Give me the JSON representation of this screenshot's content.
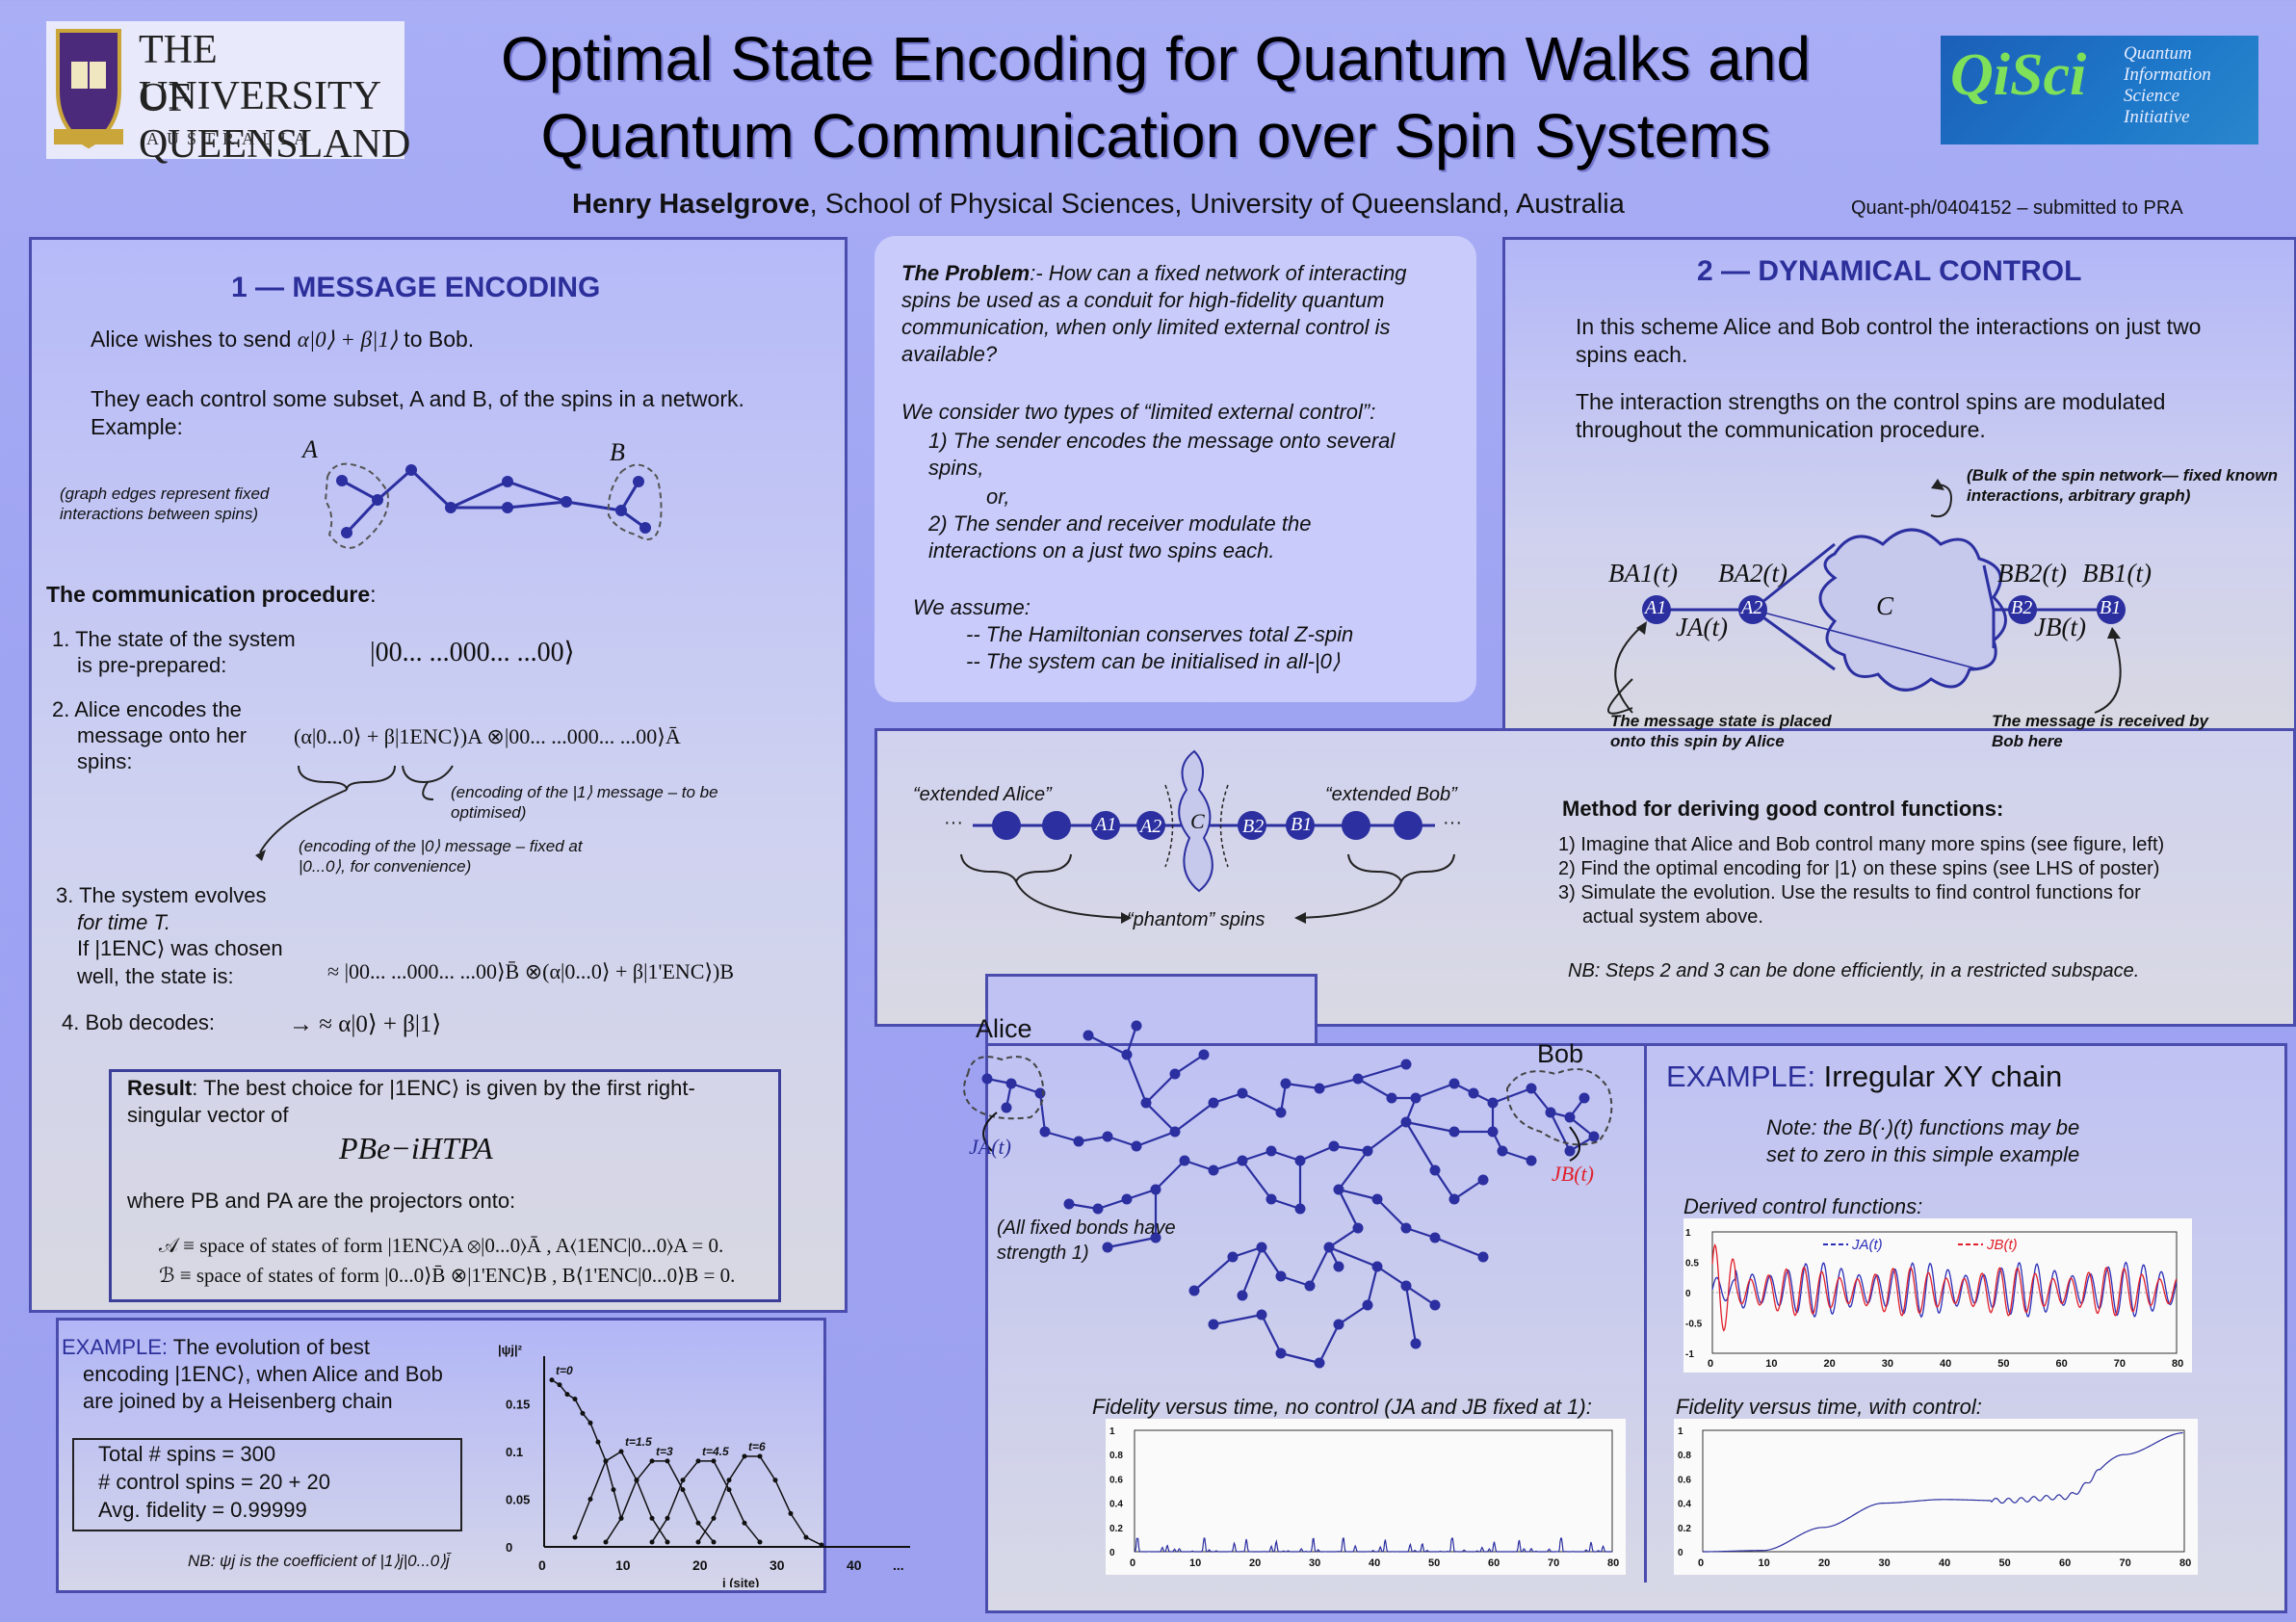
{
  "header": {
    "title_line1": "Optimal State Encoding for Quantum Walks and",
    "title_line2": "Quantum Communication over Spin Systems",
    "author": "Henry Haselgrove",
    "affiliation": ", School of Physical Sciences, University of Queensland, Australia",
    "arxiv": "Quant-ph/0404152 – submitted to PRA",
    "uq_logo": {
      "line1": "THE UNIVERSITY",
      "line2": "OF QUEENSLAND",
      "line3": "AUSTRALIA"
    },
    "qisci_logo": {
      "brand": "QiSci",
      "l1": "Quantum",
      "l2": "Information",
      "l3": "Science",
      "l4": "Initiative"
    }
  },
  "section1": {
    "heading": "1 — MESSAGE ENCODING",
    "p1_a": "Alice wishes to send ",
    "p1_math": "α|0⟩ + β|1⟩",
    "p1_b": " to Bob.",
    "p2": "They each control some subset, A and B, of the spins in a network. Example:",
    "graph_note": "(graph edges represent fixed interactions between spins)",
    "label_A": "A",
    "label_B": "B",
    "proc_heading": "The communication procedure",
    "proc_colon": ":",
    "step1_a": "1. The state of the system",
    "step1_b": "is pre-prepared:",
    "step1_math": "|00...  ...000...   ...00⟩",
    "step2_a": "2. Alice encodes the",
    "step2_b": "message onto her",
    "step2_c": "spins:",
    "step2_math": "(α|0...0⟩ + β|1ENC⟩)A ⊗|00...  ...000...  ...00⟩Ā",
    "enc1_note": "(encoding of the |1⟩ message – to be optimised)",
    "enc0_note": "(encoding of the |0⟩ message – fixed at |0...0⟩, for convenience)",
    "step3_a": "3. The system evolves",
    "step3_b": "for time T.",
    "step3_c": "If  |1ENC⟩  was chosen",
    "step3_d": "well, the state is:",
    "step3_math": "≈ |00...  ...000...  ...00⟩B̄ ⊗(α|0...0⟩ + β|1'ENC⟩)B",
    "step4": "4. Bob decodes:",
    "step4_math": "→   ≈  α|0⟩ + β|1⟩",
    "result_label": "Result",
    "result_text": ": The best choice for |1ENC⟩ is given by the first right-singular vector of",
    "result_math": "PBe−iHTPA",
    "where_text": "where PB and PA  are the projectors onto:",
    "proj1": "𝒜 ≡ space of states of form  |1ENC⟩A ⊗|0...0⟩Ā ,     A⟨1ENC|0...0⟩A = 0.",
    "proj2": "ℬ ≡ space of states of form  |0...0⟩B̄ ⊗|1'ENC⟩B ,     B⟨1'ENC|0...0⟩B = 0."
  },
  "example1": {
    "label": "EXAMPLE:",
    "text_a": " The evolution of best",
    "text_b": "encoding |1ENC⟩, when Alice and Bob",
    "text_c": "are joined by a Heisenberg chain",
    "stat1": "Total # spins  = 300",
    "stat2": "# control spins = 20 + 20",
    "stat3": "Avg. fidelity = 0.99999",
    "nb": "NB: ψj is the coefficient of |1⟩j|0...0⟩j̄"
  },
  "problem": {
    "lead": "The Problem",
    "text": ":- How can a fixed network of interacting spins be used as a conduit for high-fidelity quantum communication, when only limited external control is available?",
    "consider": "We consider two types of “limited external control”:",
    "opt1": "1) The sender encodes the message onto several spins,",
    "or": "or,",
    "opt2": "2) The sender and receiver modulate the interactions on a just two spins each.",
    "assume": "We assume:",
    "a1": "-- The Hamiltonian conserves total Z-spin",
    "a2": "-- The system can be initialised in all-|0⟩"
  },
  "section2": {
    "heading": "2 — DYNAMICAL CONTROL",
    "p1": "In this scheme Alice and Bob control the interactions on just two spins each.",
    "p2": "The interaction strengths on the control spins are modulated throughout the communication procedure.",
    "bulk_note": "(Bulk of the spin network— fixed known interactions, arbitrary graph)",
    "placed_note": "The message state is placed onto this spin by Alice",
    "received_note": "The message is received by Bob here",
    "labels": {
      "BA1": "BA1(t)",
      "BA2": "BA2(t)",
      "BB2": "BB2(t)",
      "BB1": "BB1(t)",
      "JA": "JA(t)",
      "JB": "JB(t)",
      "C": "C",
      "A1": "A1",
      "A2": "A2",
      "B1": "B1",
      "B2": "B2"
    }
  },
  "method": {
    "ext_alice": "“extended Alice”",
    "ext_bob": "“extended Bob”",
    "phantom": "“phantom” spins",
    "heading": "Method for deriving good control functions:",
    "m1": "1) Imagine that Alice and Bob control many more spins (see figure, left)",
    "m2": "2) Find the optimal encoding for |1⟩ on these spins (see LHS of poster)",
    "m3a": "3) Simulate the evolution. Use the results to find control functions for",
    "m3b": "actual system above.",
    "nb": "NB: Steps 2 and 3 can be done efficiently, in a restricted subspace."
  },
  "example2": {
    "alice": "Alice",
    "bob": "Bob",
    "ja": "JA(t)",
    "jb": "JB(t)",
    "bonds_note": "(All fixed bonds have strength 1)",
    "label": "EXAMPLE:",
    "title": " Irregular XY chain",
    "note_a": "Note: the B(·)(t) functions may be",
    "note_b": "set to zero in this simple example",
    "derived": "Derived control functions:",
    "fid_no_control": "Fidelity versus time, no control (JA and JB fixed at 1):",
    "fid_control": "Fidelity versus time, with control:"
  },
  "chart_data": [
    {
      "type": "line",
      "title": "",
      "xlabel": "j (site)",
      "ylabel": "|ψj|²",
      "xlim": [
        0,
        45
      ],
      "ylim": [
        0,
        0.2
      ],
      "xticks": [
        "0",
        "10",
        "20",
        "30",
        "40",
        "..."
      ],
      "yticks": [
        "0",
        "0.05",
        "0.1",
        "0.15"
      ],
      "series": [
        {
          "name": "t=0",
          "x": [
            1,
            2,
            3,
            4,
            5,
            6,
            7,
            8,
            9,
            10
          ],
          "y": [
            0.175,
            0.17,
            0.16,
            0.155,
            0.14,
            0.13,
            0.11,
            0.09,
            0.06,
            0.03
          ]
        },
        {
          "name": "t=1.5",
          "x": [
            4,
            6,
            8,
            10,
            12,
            14,
            16
          ],
          "y": [
            0.01,
            0.05,
            0.09,
            0.1,
            0.07,
            0.03,
            0.005
          ]
        },
        {
          "name": "t=3",
          "x": [
            8,
            10,
            12,
            14,
            16,
            18,
            20,
            22
          ],
          "y": [
            0.005,
            0.03,
            0.07,
            0.09,
            0.09,
            0.06,
            0.025,
            0.005
          ]
        },
        {
          "name": "t=4.5",
          "x": [
            14,
            16,
            18,
            20,
            22,
            24,
            26,
            28
          ],
          "y": [
            0.005,
            0.03,
            0.07,
            0.09,
            0.09,
            0.06,
            0.025,
            0.005
          ]
        },
        {
          "name": "t=6",
          "x": [
            20,
            22,
            24,
            26,
            28,
            30,
            32,
            34,
            36
          ],
          "y": [
            0.005,
            0.03,
            0.07,
            0.095,
            0.095,
            0.07,
            0.035,
            0.01,
            0.002
          ]
        }
      ]
    },
    {
      "type": "line",
      "title": "",
      "xlim": [
        0,
        80
      ],
      "ylim": [
        -1,
        1
      ],
      "xticks": [
        "0",
        "10",
        "20",
        "30",
        "40",
        "50",
        "60",
        "70",
        "80"
      ],
      "yticks": [
        "1",
        "0.5",
        "0",
        "-0.5",
        "-1"
      ],
      "series": [
        {
          "name": "JA(t)",
          "color": "#2b2fb8"
        },
        {
          "name": "JB(t)",
          "color": "#e0202a"
        }
      ]
    },
    {
      "type": "line",
      "title": "",
      "xlim": [
        0,
        80
      ],
      "ylim": [
        0,
        1
      ],
      "xticks": [
        "0",
        "10",
        "20",
        "30",
        "40",
        "50",
        "60",
        "70",
        "80"
      ],
      "yticks": [
        "0",
        "0.2",
        "0.4",
        "0.6",
        "0.8",
        "1"
      ],
      "series": [
        {
          "name": "",
          "y_peak_max": 0.11
        }
      ]
    },
    {
      "type": "line",
      "title": "",
      "xlim": [
        0,
        80
      ],
      "ylim": [
        0,
        1
      ],
      "xticks": [
        "0",
        "10",
        "20",
        "30",
        "40",
        "50",
        "60",
        "70",
        "80"
      ],
      "yticks": [
        "0",
        "0.2",
        "0.4",
        "0.6",
        "0.8",
        "1"
      ],
      "series": [
        {
          "name": "",
          "x": [
            0,
            10,
            20,
            30,
            40,
            50,
            60,
            70,
            80
          ],
          "y": [
            0,
            0.01,
            0.2,
            0.4,
            0.43,
            0.42,
            0.45,
            0.8,
            0.98
          ]
        }
      ]
    }
  ]
}
